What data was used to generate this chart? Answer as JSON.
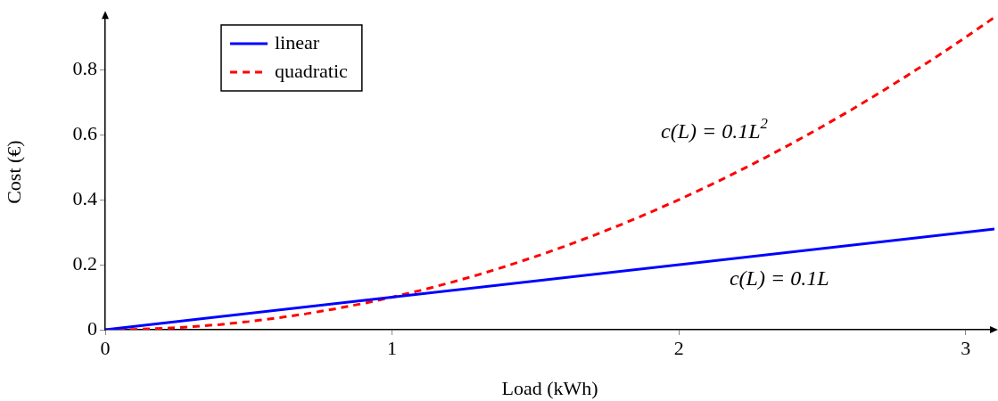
{
  "chart_data": {
    "type": "line",
    "xlabel": "Load (kWh)",
    "ylabel": "Cost (€)",
    "xlim": [
      0,
      3.1
    ],
    "ylim": [
      0,
      0.97
    ],
    "xticks": [
      0,
      1,
      2,
      3
    ],
    "yticks": [
      0,
      0.2,
      0.4,
      0.6,
      0.8
    ],
    "x": [
      0,
      0.1,
      0.2,
      0.3,
      0.4,
      0.5,
      0.6,
      0.7,
      0.8,
      0.9,
      1,
      1.1,
      1.2,
      1.3,
      1.4,
      1.5,
      1.6,
      1.7,
      1.8,
      1.9,
      2,
      2.1,
      2.2,
      2.3,
      2.4,
      2.5,
      2.6,
      2.7,
      2.8,
      2.9,
      3,
      3.1
    ],
    "series": [
      {
        "name": "linear",
        "color": "#0000ff",
        "line_style": "solid",
        "x": [
          0,
          3.1
        ],
        "values": [
          0,
          0.31
        ]
      },
      {
        "name": "quadratic",
        "color": "#ff0000",
        "line_style": "dashed",
        "values": [
          0,
          0.001,
          0.004,
          0.009,
          0.016,
          0.025,
          0.036,
          0.049,
          0.064,
          0.081,
          0.1,
          0.121,
          0.144,
          0.169,
          0.196,
          0.225,
          0.256,
          0.289,
          0.324,
          0.361,
          0.4,
          0.441,
          0.484,
          0.529,
          0.576,
          0.625,
          0.676,
          0.729,
          0.784,
          0.841,
          0.9,
          0.961
        ]
      }
    ],
    "annotations": [
      "c(L) = 0.1L$^{2}$",
      "c(L) = 0.1L"
    ],
    "legend": "top left",
    "grid": false,
    "marker": "none"
  }
}
